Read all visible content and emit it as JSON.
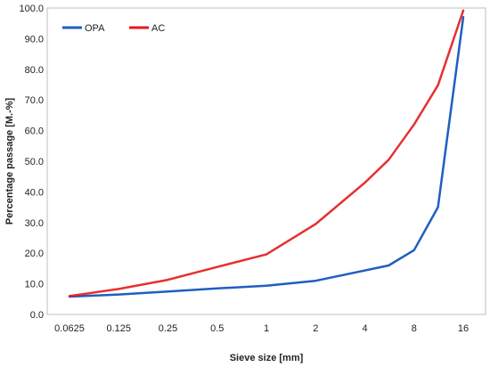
{
  "chart_data": {
    "type": "line",
    "title": "",
    "xlabel": "Sieve size [mm]",
    "ylabel": "Percentage passage [M.-%]",
    "x_scale": "log2",
    "x_ticks": [
      "0.0625",
      "0.125",
      "0.25",
      "0.5",
      "1",
      "2",
      "4",
      "8",
      "16"
    ],
    "y_ticks": [
      "0.0",
      "10.0",
      "20.0",
      "30.0",
      "40.0",
      "50.0",
      "60.0",
      "70.0",
      "80.0",
      "90.0",
      "100.0"
    ],
    "ylim": [
      0,
      100
    ],
    "grid": false,
    "legend_position": "top-left",
    "series": [
      {
        "name": "OPA",
        "color": "#1f5fbf",
        "x": [
          0.0625,
          0.125,
          0.25,
          0.5,
          1,
          2,
          5.6,
          8,
          11.2,
          16
        ],
        "y": [
          5.8,
          6.5,
          7.5,
          8.5,
          9.4,
          11.0,
          16.0,
          21.0,
          35.0,
          97.0
        ]
      },
      {
        "name": "AC",
        "color": "#e41a1a",
        "x": [
          0.0625,
          0.125,
          0.25,
          0.5,
          1,
          2,
          4,
          5.6,
          8,
          11.2,
          16
        ],
        "y": [
          6.0,
          8.3,
          11.3,
          15.5,
          19.6,
          29.5,
          43.0,
          50.5,
          62.0,
          74.8,
          99.2
        ]
      }
    ]
  }
}
